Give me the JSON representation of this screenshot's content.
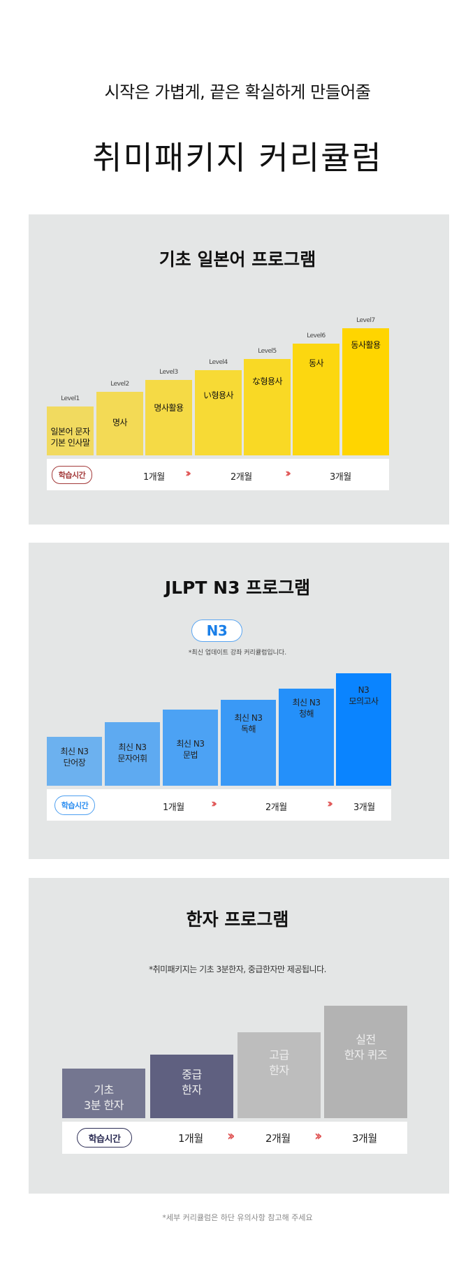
{
  "header": {
    "subtitle": "시작은 가볍게, 끝은 확실하게 만들어줄",
    "title": "취미패키지 커리큘럼"
  },
  "colors": {
    "panel_bg": "#e4e6e6",
    "arrow": "#e05656",
    "yellow": "#ffd500",
    "blue": "#0a84ff",
    "navy": "#5f6080",
    "gray": "#b3b3b3"
  },
  "basic": {
    "title": "기초 일본어 프로그램",
    "levels": [
      {
        "level": "Level1",
        "label": "일본어 문자\n기본 인사말"
      },
      {
        "level": "Level2",
        "label": "명사"
      },
      {
        "level": "Level3",
        "label": "명사활용"
      },
      {
        "level": "Level4",
        "label": "い형용사"
      },
      {
        "level": "Level5",
        "label": "な형용사"
      },
      {
        "level": "Level6",
        "label": "동사"
      },
      {
        "level": "Level7",
        "label": "동사활용"
      }
    ],
    "study_time": "학습시간",
    "months": [
      "1개월",
      "2개월",
      "3개월"
    ],
    "arrow_icon": "double-chevron-right"
  },
  "jlpt": {
    "title": "JLPT N3 프로그램",
    "badge": "N3",
    "note": "*최신 업데이트 강좌 커리큘럼입니다.",
    "bars": [
      "최신 N3\n단어장",
      "최신 N3\n문자어휘",
      "최신 N3\n문법",
      "최신 N3\n독해",
      "최신 N3\n청해",
      "N3\n모의고사"
    ],
    "study_time": "학습시간",
    "months": [
      "1개월",
      "2개월",
      "3개월"
    ]
  },
  "kanji": {
    "title": "한자 프로그램",
    "note": "*취미패키지는 기초 3분한자, 중급한자만 제공됩니다.",
    "bars": [
      "기초\n3분 한자",
      "중급\n한자",
      "고급\n한자",
      "실전\n한자 퀴즈"
    ],
    "study_time": "학습시간",
    "months": [
      "1개월",
      "2개월",
      "3개월"
    ]
  },
  "footer": {
    "note": "*세부 커리큘럼은 하단 유의사항 참고해 주세요"
  }
}
